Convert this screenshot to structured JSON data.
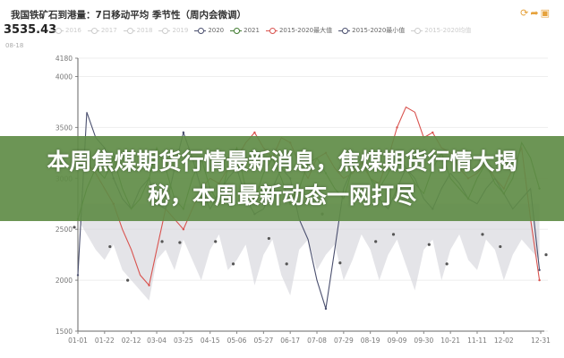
{
  "header": {
    "title": "我国铁矿石到港量：7日移动平均 季节性（周内会微调）",
    "current_value": "3535.43",
    "sub_label": "08-18",
    "icons": [
      "refresh-icon",
      "share-icon",
      "save-icon"
    ]
  },
  "banner": {
    "text": "本周焦煤期货行情最新消息，焦煤期货行情大揭秘，本周最新动态一网打尽"
  },
  "chart_data": {
    "type": "line",
    "title": "我国铁矿石到港量：7日移动平均 季节性（周内会微调）",
    "xlabel": "",
    "ylabel": "",
    "ylim": [
      1500,
      4180
    ],
    "y_ticks": [
      "4180",
      "4000",
      "3500",
      "3000",
      "2500",
      "2000",
      "1500"
    ],
    "x_ticks": [
      "01-01",
      "01-22",
      "02-12",
      "03-04",
      "03-25",
      "04-15",
      "05-06",
      "05-27",
      "06-17",
      "07-08",
      "07-29",
      "08-19",
      "09-09",
      "09-30",
      "10-21",
      "11-11",
      "12-02",
      "12-31"
    ],
    "grid": true,
    "legend_position": "top",
    "legend": [
      {
        "name": "2016",
        "faded": true
      },
      {
        "name": "2017",
        "faded": true
      },
      {
        "name": "2018",
        "faded": true
      },
      {
        "name": "2019",
        "faded": true
      },
      {
        "name": "2020",
        "faded": false
      },
      {
        "name": "2021",
        "faded": false
      },
      {
        "name": "2015-2020最大值",
        "faded": false
      },
      {
        "name": "2015-2020最小值",
        "faded": false
      },
      {
        "name": "2015-2020均值",
        "faded": true
      }
    ],
    "x": [
      "01-01",
      "01-08",
      "01-15",
      "01-22",
      "01-29",
      "02-05",
      "02-12",
      "02-19",
      "02-26",
      "03-04",
      "03-11",
      "03-18",
      "03-25",
      "04-01",
      "04-08",
      "04-15",
      "04-22",
      "04-29",
      "05-06",
      "05-13",
      "05-20",
      "05-27",
      "06-03",
      "06-10",
      "06-17",
      "06-24",
      "07-01",
      "07-08",
      "07-15",
      "07-22",
      "07-29",
      "08-05",
      "08-12",
      "08-19",
      "08-26",
      "09-02",
      "09-09",
      "09-16",
      "09-23",
      "09-30",
      "10-07",
      "10-14",
      "10-21",
      "10-28",
      "11-04",
      "11-11",
      "11-18",
      "11-25",
      "12-02",
      "12-09",
      "12-16",
      "12-23",
      "12-30"
    ],
    "series": [
      {
        "name": "2020",
        "color": "#4a4f6e",
        "values": [
          2050,
          3650,
          3400,
          3300,
          3000,
          2800,
          2700,
          2900,
          3000,
          2750,
          2700,
          3100,
          3450,
          3200,
          2900,
          2700,
          2850,
          3000,
          3100,
          2800,
          2650,
          2700,
          2900,
          3100,
          3000,
          2600,
          2400,
          2000,
          1720,
          2300,
          2900,
          3100,
          3200,
          3000,
          2800,
          2700,
          2900,
          3100,
          3000,
          2800,
          2700,
          2900,
          3050,
          2950,
          2800,
          2750,
          2900,
          3000,
          2850,
          2700,
          2800,
          2900,
          2100
        ]
      },
      {
        "name": "2021",
        "color": "#3f7a2e",
        "values": [
          2600,
          2900,
          3100,
          3000,
          3200,
          2900,
          2700,
          2800,
          3000,
          3300,
          3100,
          2800,
          2700,
          3000,
          3200,
          2900,
          2750,
          3100,
          3300,
          2900,
          2800,
          3050,
          3200,
          3000,
          2750,
          2900,
          3150,
          3200,
          3050,
          2900,
          2800,
          3100,
          3200,
          3000,
          2900,
          3050,
          3250,
          3100,
          2950,
          2850,
          3100,
          3250,
          3000,
          2900,
          2800,
          3000,
          3150,
          2950,
          2850,
          3000,
          3350,
          3200,
          2900
        ]
      },
      {
        "name": "2015-2020最大值",
        "color": "#d9534f",
        "values": [
          3200,
          3150,
          3050,
          2900,
          2750,
          2500,
          2300,
          2050,
          1950,
          2300,
          2700,
          2600,
          2500,
          2700,
          2900,
          3000,
          2950,
          3100,
          3200,
          3350,
          3450,
          3300,
          3200,
          3400,
          3350,
          3150,
          3000,
          3200,
          3250,
          3100,
          3000,
          3050,
          3150,
          3000,
          2950,
          3200,
          3500,
          3700,
          3650,
          3400,
          3450,
          3300,
          3250,
          3100,
          3000,
          3050,
          3150,
          3000,
          2900,
          3100,
          3300,
          2600,
          2000
        ]
      },
      {
        "name": "2015-2020最小值",
        "color": "#cfcfd4",
        "values": [
          2600,
          2450,
          2300,
          2200,
          2350,
          2100,
          2000,
          1900,
          1800,
          2200,
          2300,
          2100,
          2400,
          2200,
          2000,
          2300,
          2450,
          2100,
          2200,
          2350,
          1950,
          2250,
          2400,
          2050,
          1850,
          2300,
          2400,
          2100,
          2250,
          2350,
          2000,
          2200,
          2450,
          2300,
          2000,
          2250,
          2400,
          2150,
          1900,
          2300,
          2400,
          2000,
          2300,
          2450,
          2200,
          2100,
          2400,
          2300,
          2000,
          2250,
          2400,
          2300,
          2200
        ]
      },
      {
        "name": "2015-2020均值",
        "color": "#555555",
        "x": [
          "01-01",
          "01-22",
          "02-12",
          "03-04",
          "03-25",
          "04-15",
          "05-06",
          "05-27",
          "06-17",
          "07-08",
          "07-29",
          "08-19",
          "09-09",
          "09-30",
          "10-21",
          "11-11",
          "12-02",
          "12-31"
        ],
        "values": [
          2520,
          2330,
          2000,
          2380,
          2370,
          2380,
          2160,
          2410,
          2160,
          2650,
          2170,
          2380,
          2450,
          2350,
          2160,
          2450,
          2330,
          2250
        ]
      }
    ]
  }
}
